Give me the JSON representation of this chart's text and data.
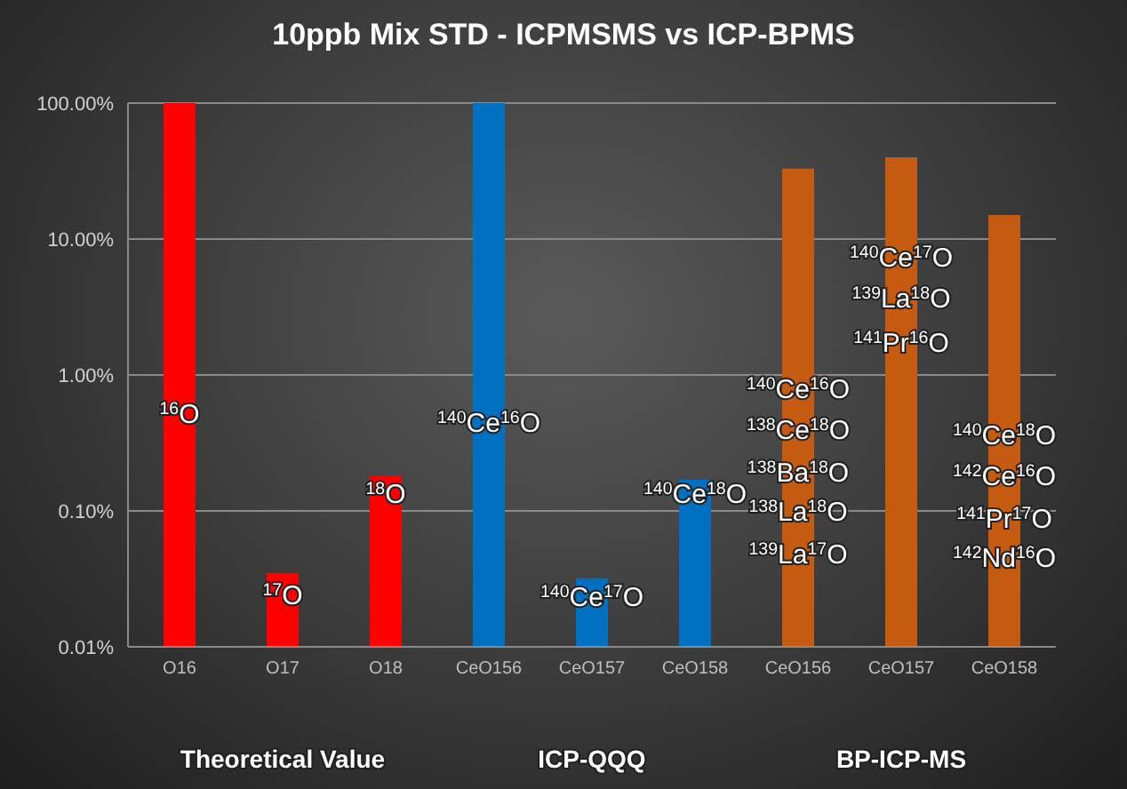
{
  "chart_data": {
    "type": "bar",
    "title": "10ppb Mix STD - ICPMSMS vs ICP-BPMS",
    "categories": [
      "O16",
      "O17",
      "O18",
      "CeO156",
      "CeO157",
      "CeO158",
      "CeO156",
      "CeO157",
      "CeO158"
    ],
    "values": [
      100,
      0.035,
      0.18,
      100,
      0.032,
      0.17,
      33,
      40,
      15
    ],
    "colors": [
      "#ff0000",
      "#ff0000",
      "#ff0000",
      "#0070c0",
      "#0070c0",
      "#0070c0",
      "#c55a11",
      "#c55a11",
      "#c55a11"
    ],
    "log": "y",
    "ylim": [
      0.01,
      100
    ],
    "yticks": [
      {
        "value": 0.01,
        "label": "0.01%"
      },
      {
        "value": 0.1,
        "label": "0.10%"
      },
      {
        "value": 1,
        "label": "1.00%"
      },
      {
        "value": 10,
        "label": "10.00%"
      },
      {
        "value": 100,
        "label": "100.00%"
      }
    ],
    "grid": "y",
    "legend": false,
    "annotations": [
      "$^{16}$O",
      "$^{17}$O",
      "$^{18}$O",
      "$^{140}$Ce$^{16}$O",
      "$^{140}$Ce$^{17}$O",
      "$^{140}$Ce$^{18}$O",
      "$^{140}$Ce$^{16}$O",
      "$^{138}$Ce$^{18}$O",
      "$^{138}$Ba$^{18}$O",
      "$^{138}$La$^{18}$O",
      "$^{139}$La$^{17}$O",
      "$^{140}$Ce$^{17}$O",
      "$^{139}$La$^{18}$O",
      "$^{141}$Pr$^{16}$O",
      "$^{140}$Ce$^{18}$O",
      "$^{142}$Ce$^{16}$O",
      "$^{141}$Pr$^{17}$O",
      "$^{142}$Nd$^{16}$O",
      "Theoretical Value",
      "ICP-QQQ",
      "BP-ICP-MS"
    ]
  }
}
